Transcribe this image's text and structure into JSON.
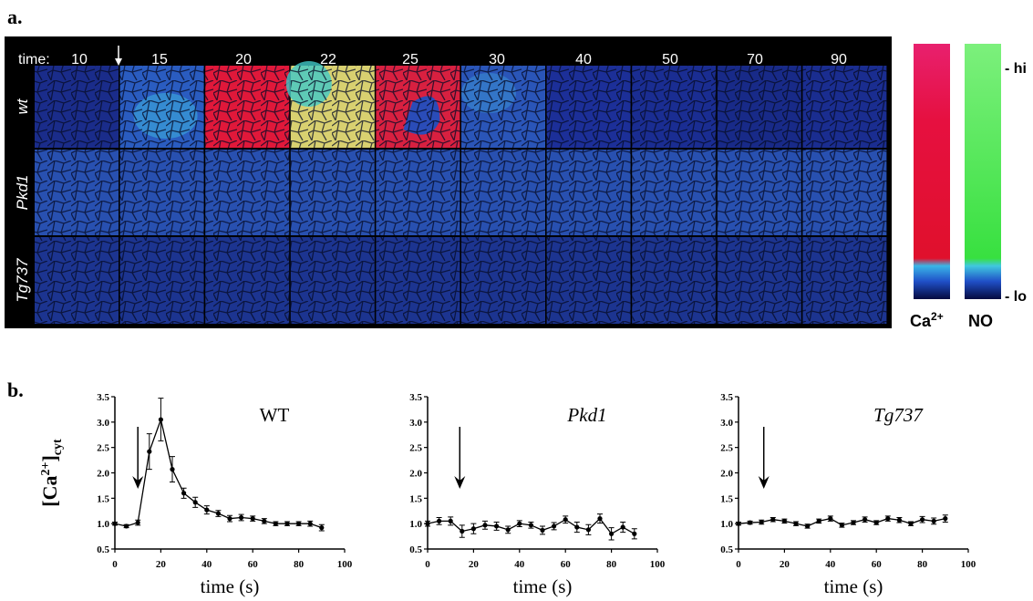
{
  "panel_a": {
    "label": "a.",
    "time_label": "time:",
    "times": [
      10,
      15,
      20,
      22,
      25,
      30,
      40,
      50,
      70,
      90
    ],
    "rows": [
      "wt",
      "Pkd1",
      "Tg737"
    ],
    "colorbars": {
      "hi": "- hi",
      "lo": "- lo",
      "ca": [
        "Ca",
        "2+"
      ],
      "no": "NO"
    }
  },
  "panel_b": {
    "label": "b."
  },
  "chart_data": [
    {
      "type": "line",
      "annotation": "WT",
      "italic": false,
      "ylabel": [
        "[Ca",
        "2+",
        "]",
        "cyt"
      ],
      "xlabel": "time (s)",
      "color": "#000000",
      "x": [
        0,
        5,
        10,
        15,
        20,
        25,
        30,
        35,
        40,
        45,
        50,
        55,
        60,
        65,
        70,
        75,
        80,
        85,
        90
      ],
      "values": [
        1.0,
        0.95,
        1.02,
        2.42,
        3.05,
        2.07,
        1.6,
        1.42,
        1.27,
        1.2,
        1.1,
        1.12,
        1.1,
        1.05,
        1.0,
        1.0,
        1.0,
        1.0,
        0.92
      ],
      "errors": [
        0.03,
        0.03,
        0.05,
        0.35,
        0.42,
        0.25,
        0.1,
        0.1,
        0.08,
        0.06,
        0.06,
        0.06,
        0.05,
        0.05,
        0.04,
        0.04,
        0.04,
        0.05,
        0.06
      ],
      "arrow_x": 10,
      "xlim": [
        0,
        100
      ],
      "xticks": [
        0,
        20,
        40,
        60,
        80,
        100
      ],
      "ylim": [
        0.5,
        3.5
      ],
      "yticks": [
        0.5,
        {
          "value": 1,
          "label": "1.0"
        },
        1.5,
        {
          "value": 2,
          "label": "2.0"
        },
        2.5,
        {
          "value": 3,
          "label": "3.0"
        },
        3.5
      ]
    },
    {
      "type": "line",
      "annotation": "Pkd1",
      "italic": true,
      "xlabel": "time (s)",
      "color": "#000000",
      "x": [
        0,
        5,
        10,
        15,
        20,
        25,
        30,
        35,
        40,
        45,
        50,
        55,
        60,
        65,
        70,
        75,
        80,
        85,
        90
      ],
      "values": [
        1.0,
        1.05,
        1.05,
        0.85,
        0.9,
        0.97,
        0.95,
        0.88,
        1.0,
        0.97,
        0.87,
        0.95,
        1.08,
        0.93,
        0.88,
        1.1,
        0.8,
        0.93,
        0.8
      ],
      "errors": [
        0.05,
        0.07,
        0.08,
        0.12,
        0.1,
        0.08,
        0.08,
        0.07,
        0.06,
        0.06,
        0.08,
        0.07,
        0.07,
        0.1,
        0.1,
        0.09,
        0.12,
        0.1,
        0.1
      ],
      "arrow_x": 14,
      "xlim": [
        0,
        100
      ],
      "xticks": [
        0,
        20,
        40,
        60,
        80,
        100
      ],
      "ylim": [
        0.5,
        3.5
      ],
      "yticks": [
        0.5,
        {
          "value": 1,
          "label": "1.0"
        },
        1.5,
        {
          "value": 2,
          "label": "2.0"
        },
        2.5,
        {
          "value": 3,
          "label": "3.0"
        },
        3.5
      ]
    },
    {
      "type": "line",
      "annotation": "Tg737",
      "italic": true,
      "xlabel": "time (s)",
      "color": "#000000",
      "x": [
        0,
        5,
        10,
        15,
        20,
        25,
        30,
        35,
        40,
        45,
        50,
        55,
        60,
        65,
        70,
        75,
        80,
        85,
        90
      ],
      "values": [
        1.0,
        1.02,
        1.03,
        1.08,
        1.05,
        1.0,
        0.95,
        1.05,
        1.1,
        0.97,
        1.02,
        1.08,
        1.02,
        1.1,
        1.07,
        1.0,
        1.08,
        1.05,
        1.1
      ],
      "errors": [
        0.03,
        0.03,
        0.04,
        0.04,
        0.04,
        0.04,
        0.04,
        0.04,
        0.05,
        0.04,
        0.04,
        0.05,
        0.04,
        0.05,
        0.05,
        0.04,
        0.06,
        0.06,
        0.07
      ],
      "arrow_x": 11,
      "xlim": [
        0,
        100
      ],
      "xticks": [
        0,
        20,
        40,
        60,
        80,
        100
      ],
      "ylim": [
        0.5,
        3.5
      ],
      "yticks": [
        0.5,
        {
          "value": 1,
          "label": "1.0"
        },
        1.5,
        {
          "value": 2,
          "label": "2.0"
        },
        2.5,
        {
          "value": 3,
          "label": "3.0"
        },
        3.5
      ]
    }
  ]
}
